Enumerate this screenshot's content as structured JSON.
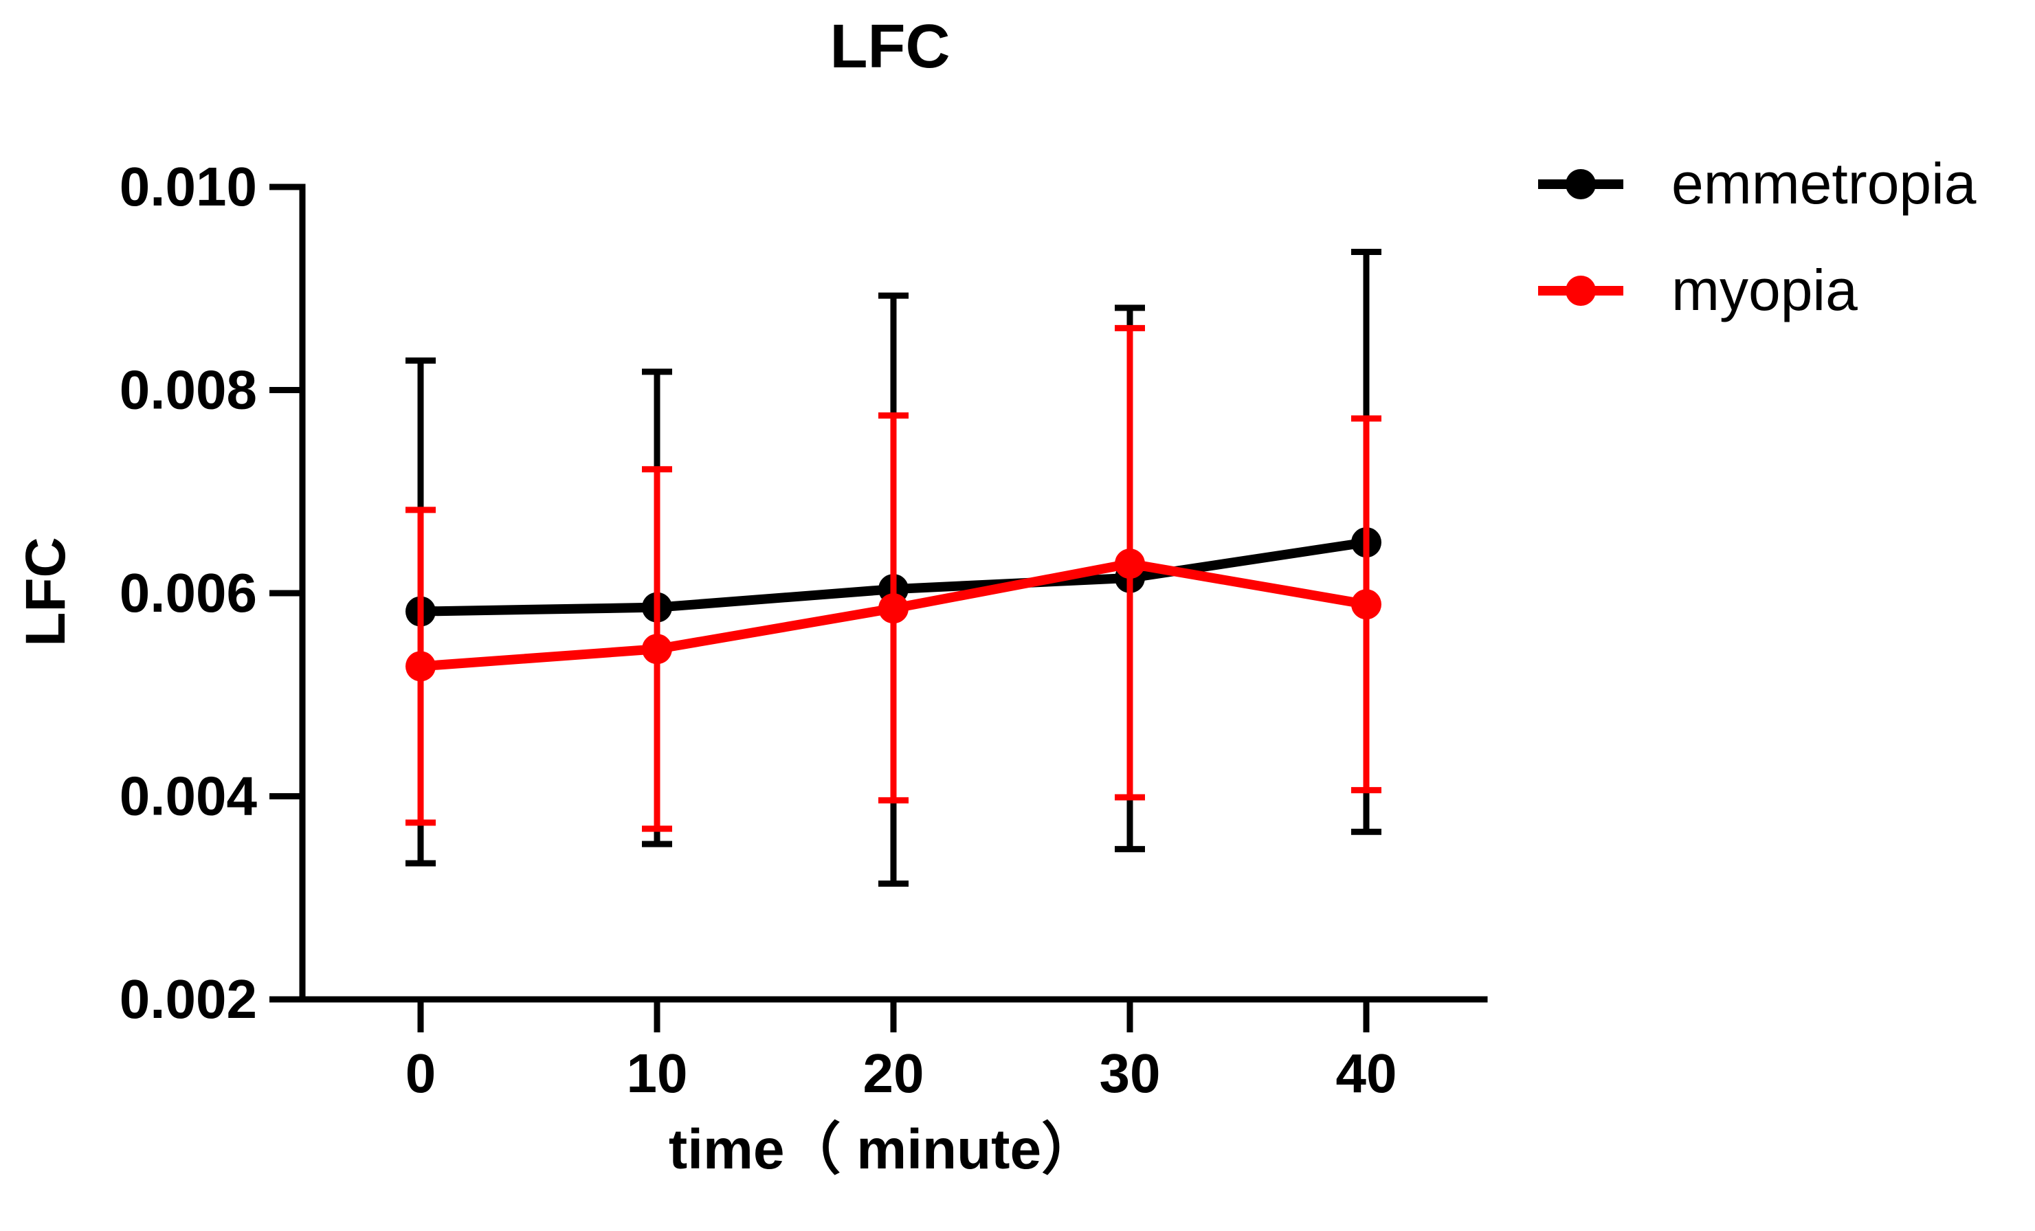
{
  "chart_data": {
    "type": "line",
    "title": "LFC",
    "xlabel": "time（ minute）",
    "ylabel": "LFC",
    "x": [
      0,
      10,
      20,
      30,
      40
    ],
    "x_ticks": [
      "0",
      "10",
      "20",
      "30",
      "40"
    ],
    "y_ticks": [
      "0.002",
      "0.004",
      "0.006",
      "0.008",
      "0.010"
    ],
    "y_tick_values": [
      0.002,
      0.004,
      0.006,
      0.008,
      0.01
    ],
    "xlim": [
      -5,
      45
    ],
    "ylim": [
      0.002,
      0.01
    ],
    "grid": false,
    "legend_position": "top-right",
    "series": [
      {
        "name": "emmetropia",
        "color": "#000000",
        "values": [
          0.00582,
          0.00586,
          0.00604,
          0.00615,
          0.0065
        ],
        "error_upper": [
          0.00829,
          0.00818,
          0.00893,
          0.00881,
          0.00936
        ],
        "error_lower": [
          0.00334,
          0.00353,
          0.00314,
          0.00348,
          0.00365
        ]
      },
      {
        "name": "myopia",
        "color": "#ff0000",
        "values": [
          0.00528,
          0.00545,
          0.00585,
          0.00629,
          0.00589
        ],
        "error_upper": [
          0.00682,
          0.00722,
          0.00775,
          0.00861,
          0.00772
        ],
        "error_lower": [
          0.00374,
          0.00368,
          0.00396,
          0.00399,
          0.00406
        ]
      }
    ]
  }
}
